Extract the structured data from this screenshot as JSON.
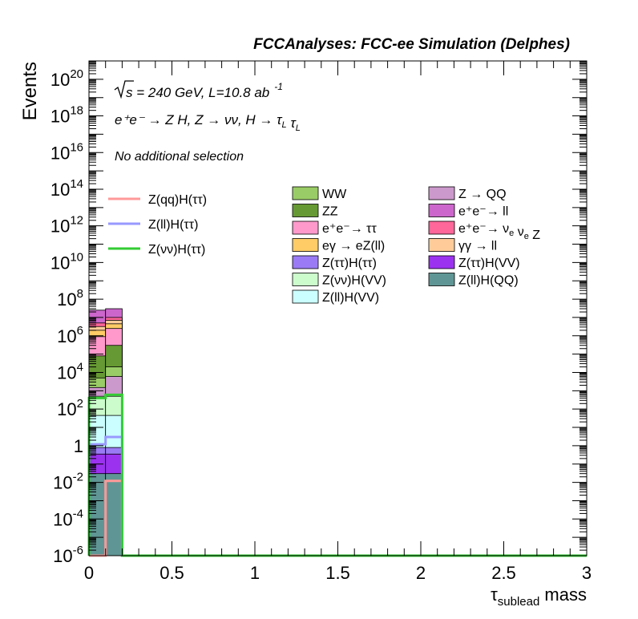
{
  "chart_data": {
    "type": "bar",
    "title": "FCCAnalyses: FCC-ee Simulation (Delphes)",
    "xlabel_main": "τ",
    "xlabel_sub": "sublead",
    "xlabel_rest": " mass",
    "ylabel": "Events",
    "xlim": [
      0,
      3
    ],
    "ylim": [
      1e-06,
      1e+21
    ],
    "log_y": true,
    "grid": false,
    "x_ticks": [
      "0",
      "0.5",
      "1",
      "1.5",
      "2",
      "2.5",
      "3"
    ],
    "y_ticks": [
      {
        "base": "10",
        "exp": "-6",
        "value": 1e-06
      },
      {
        "base": "10",
        "exp": "-4",
        "value": 0.0001
      },
      {
        "base": "10",
        "exp": "-2",
        "value": 0.01
      },
      {
        "base": "1",
        "exp": "",
        "value": 1
      },
      {
        "base": "10",
        "exp": "2",
        "value": 100.0
      },
      {
        "base": "10",
        "exp": "4",
        "value": 10000.0
      },
      {
        "base": "10",
        "exp": "6",
        "value": 1000000.0
      },
      {
        "base": "10",
        "exp": "8",
        "value": 100000000.0
      },
      {
        "base": "10",
        "exp": "10",
        "value": 10000000000.0
      },
      {
        "base": "10",
        "exp": "12",
        "value": 1000000000000.0
      },
      {
        "base": "10",
        "exp": "14",
        "value": 100000000000000.0
      },
      {
        "base": "10",
        "exp": "16",
        "value": 1e+16
      },
      {
        "base": "10",
        "exp": "18",
        "value": 1e+18
      },
      {
        "base": "10",
        "exp": "20",
        "value": 1e+20
      }
    ],
    "annotations": {
      "line1_pre": "s = 240 GeV, L=10.8 ab",
      "line1_sup": "-1",
      "line2": "e⁺e⁻ → Z H, Z → νν, H → τ_L τ_L",
      "line3": "No additional selection"
    },
    "bins": [
      [
        0,
        0.1
      ],
      [
        0.1,
        0.2
      ]
    ],
    "stack": [
      {
        "name": "Z(ll)H(QQ)",
        "color": "#5f9695",
        "cum": [
          0.03,
          0.03
        ]
      },
      {
        "name": "Z(ττ)H(VV)",
        "color": "#9b32f0",
        "cum": [
          0.35,
          0.35
        ]
      },
      {
        "name": "Z(ττ)H(ττ)",
        "color": "#9a7bf5",
        "cum": [
          0.8,
          0.8
        ]
      },
      {
        "name": "Z(ll)H(VV)",
        "color": "#cbffff",
        "cum": [
          45,
          45
        ]
      },
      {
        "name": "Z(νν)H(VV)",
        "color": "#ccfccc",
        "cum": [
          500,
          500
        ]
      },
      {
        "name": "Z → QQ",
        "color": "#cc99cc",
        "cum": [
          1500,
          6000
        ]
      },
      {
        "name": "WW",
        "color": "#99cc66",
        "cum": [
          5000,
          20000
        ]
      },
      {
        "name": "ZZ",
        "color": "#669933",
        "cum": [
          80000,
          300000
        ]
      },
      {
        "name": "e⁺e⁻→ ττ",
        "color": "#ff99cc",
        "cum": [
          900000,
          2500000
        ]
      },
      {
        "name": "eγ → eZ(ll)",
        "color": "#ffcc66",
        "cum": [
          2000000,
          4500000
        ]
      },
      {
        "name": "γγ → ll",
        "color": "#ffcc99",
        "cum": [
          3200000,
          7000000
        ]
      },
      {
        "name": "e⁺e⁻→ ν_e ν_e Z",
        "color": "#ff6699",
        "cum": [
          5000000,
          10000000
        ]
      },
      {
        "name": "e⁺e⁻→ ll",
        "color": "#cc66cc",
        "cum": [
          25000000,
          30000000
        ]
      }
    ],
    "signals": [
      {
        "name": "Z(qq)H(ττ)",
        "color": "#ff9999",
        "values": [
          1e-06,
          0.012
        ]
      },
      {
        "name": "Z(ll)H(ττ)",
        "color": "#9999ff",
        "values": [
          1.2,
          3
        ]
      },
      {
        "name": "Z(νν)H(ττ)",
        "color": "#33cc33",
        "values": [
          400,
          600
        ]
      }
    ],
    "legend_left": [
      {
        "label": "Z(qq)H(ττ)",
        "color": "#ff9999"
      },
      {
        "label": "Z(ll)H(ττ)",
        "color": "#9999ff"
      },
      {
        "label": "Z(νν)H(ττ)",
        "color": "#33cc33"
      }
    ],
    "legend_mid": [
      {
        "label": "WW",
        "color": "#99cc66"
      },
      {
        "label": "ZZ",
        "color": "#669933"
      },
      {
        "label": "e⁺e⁻→ ττ",
        "color": "#ff99cc"
      },
      {
        "label": "eγ → eZ(ll)",
        "color": "#ffcc66"
      },
      {
        "label": "Z(ττ)H(ττ)",
        "color": "#9a7bf5"
      },
      {
        "label": "Z(νν)H(VV)",
        "color": "#ccfccc"
      },
      {
        "label": "Z(ll)H(VV)",
        "color": "#cbffff"
      }
    ],
    "legend_right": [
      {
        "label": "Z → QQ",
        "color": "#cc99cc"
      },
      {
        "label": "e⁺e⁻→ ll",
        "color": "#cc66cc"
      },
      {
        "label": "e⁺e⁻→ ν_e ν_e Z",
        "color": "#ff6699"
      },
      {
        "label": "γγ → ll",
        "color": "#ffcc99"
      },
      {
        "label": "Z(ττ)H(VV)",
        "color": "#9b32f0"
      },
      {
        "label": "Z(ll)H(QQ)",
        "color": "#5f9695"
      }
    ]
  }
}
